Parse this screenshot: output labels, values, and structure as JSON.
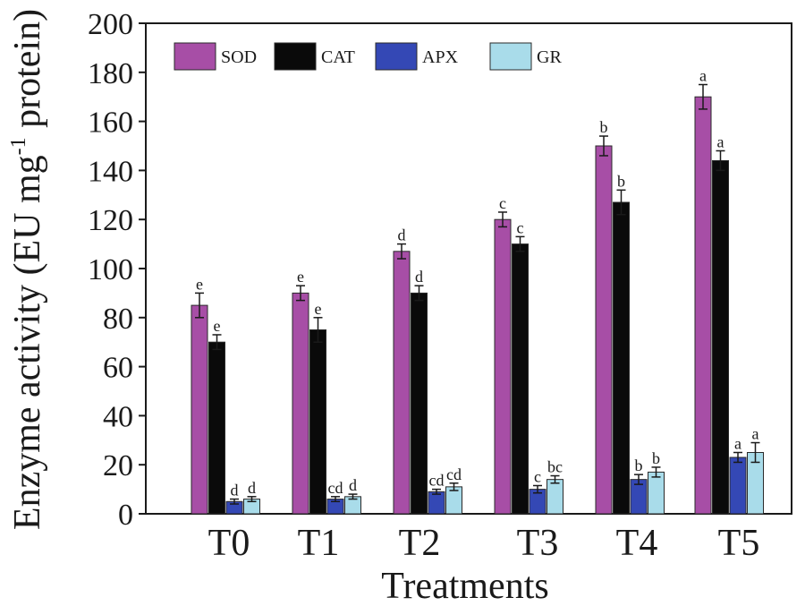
{
  "chart_data": {
    "type": "bar",
    "title": "",
    "xlabel": "Treatments",
    "ylabel": "Enzyme activity (EU mg-1 protein)",
    "ylabel_parts": {
      "main": "Enzyme activity (EU mg",
      "sup": "-1",
      "tail": " protein)"
    },
    "ylim": [
      0,
      200
    ],
    "yticks": [
      0,
      20,
      40,
      60,
      80,
      100,
      120,
      140,
      160,
      180,
      200
    ],
    "categories": [
      "T0",
      "T1",
      "T2",
      "T3",
      "T4",
      "T5"
    ],
    "series": [
      {
        "name": "SOD",
        "color": "#a74ea6",
        "values": [
          85,
          90,
          107,
          120,
          150,
          170
        ],
        "errors": [
          5,
          3,
          3,
          3,
          4,
          5
        ],
        "labels": [
          "e",
          "e",
          "d",
          "c",
          "b",
          "a"
        ]
      },
      {
        "name": "CAT",
        "color": "#0a0a0a",
        "values": [
          70,
          75,
          90,
          110,
          127,
          144
        ],
        "errors": [
          3,
          5,
          3,
          3,
          5,
          4
        ],
        "labels": [
          "e",
          "e",
          "d",
          "c",
          "b",
          "a"
        ]
      },
      {
        "name": "APX",
        "color": "#3448b5",
        "values": [
          5,
          6,
          9,
          10,
          14,
          23
        ],
        "errors": [
          1,
          1,
          1,
          1.5,
          2,
          2
        ],
        "labels": [
          "d",
          "cd",
          "cd",
          "c",
          "b",
          "a"
        ]
      },
      {
        "name": "GR",
        "color": "#a9dcea",
        "values": [
          6,
          7,
          11,
          14,
          17,
          25
        ],
        "errors": [
          1,
          1,
          1.5,
          1.5,
          2,
          4
        ],
        "labels": [
          "d",
          "d",
          "cd",
          "bc",
          "b",
          "a"
        ]
      }
    ],
    "legend_position": "top-left"
  }
}
